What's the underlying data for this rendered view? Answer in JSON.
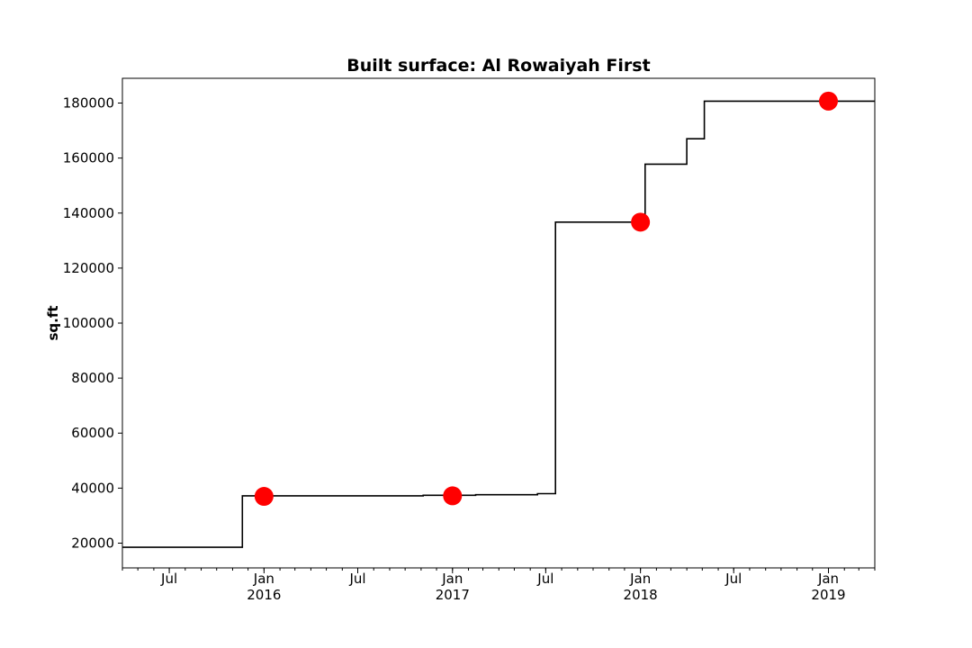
{
  "chart_data": {
    "type": "line",
    "title": "Built surface: Al Rowaiyah First",
    "xlabel": "",
    "ylabel": "sq.ft",
    "xlim": [
      "2015-04-01",
      "2019-04-01"
    ],
    "ylim": [
      11000,
      189000
    ],
    "grid": false,
    "legend": "none",
    "yticks": [
      20000,
      40000,
      60000,
      80000,
      100000,
      120000,
      140000,
      160000,
      180000
    ],
    "xticks": [
      {
        "date": "2015-07-01",
        "label": "Jul",
        "year": ""
      },
      {
        "date": "2016-01-01",
        "label": "Jan",
        "year": "2016"
      },
      {
        "date": "2016-07-01",
        "label": "Jul",
        "year": ""
      },
      {
        "date": "2017-01-01",
        "label": "Jan",
        "year": "2017"
      },
      {
        "date": "2017-07-01",
        "label": "Jul",
        "year": ""
      },
      {
        "date": "2018-01-01",
        "label": "Jan",
        "year": "2018"
      },
      {
        "date": "2018-07-01",
        "label": "Jul",
        "year": ""
      },
      {
        "date": "2019-01-01",
        "label": "Jan",
        "year": "2019"
      }
    ],
    "series": [
      {
        "type": "step",
        "color": "#000000",
        "points": [
          {
            "x": "2015-04-01",
            "y": 18500
          },
          {
            "x": "2015-11-20",
            "y": 18500
          },
          {
            "x": "2015-11-20",
            "y": 37200
          },
          {
            "x": "2016-11-05",
            "y": 37200
          },
          {
            "x": "2016-11-05",
            "y": 37400
          },
          {
            "x": "2017-02-15",
            "y": 37400
          },
          {
            "x": "2017-02-15",
            "y": 37600
          },
          {
            "x": "2017-06-15",
            "y": 37600
          },
          {
            "x": "2017-06-15",
            "y": 38000
          },
          {
            "x": "2017-07-20",
            "y": 38000
          },
          {
            "x": "2017-07-20",
            "y": 136700
          },
          {
            "x": "2018-01-10",
            "y": 136700
          },
          {
            "x": "2018-01-10",
            "y": 157800
          },
          {
            "x": "2018-04-01",
            "y": 157800
          },
          {
            "x": "2018-04-01",
            "y": 167000
          },
          {
            "x": "2018-05-05",
            "y": 167000
          },
          {
            "x": "2018-05-05",
            "y": 180700
          },
          {
            "x": "2019-04-01",
            "y": 180700
          }
        ]
      },
      {
        "type": "scatter",
        "color": "#ff0000",
        "points": [
          {
            "x": "2016-01-01",
            "y": 37000
          },
          {
            "x": "2017-01-01",
            "y": 37200
          },
          {
            "x": "2018-01-01",
            "y": 136700
          },
          {
            "x": "2019-01-01",
            "y": 180700
          }
        ]
      }
    ]
  }
}
